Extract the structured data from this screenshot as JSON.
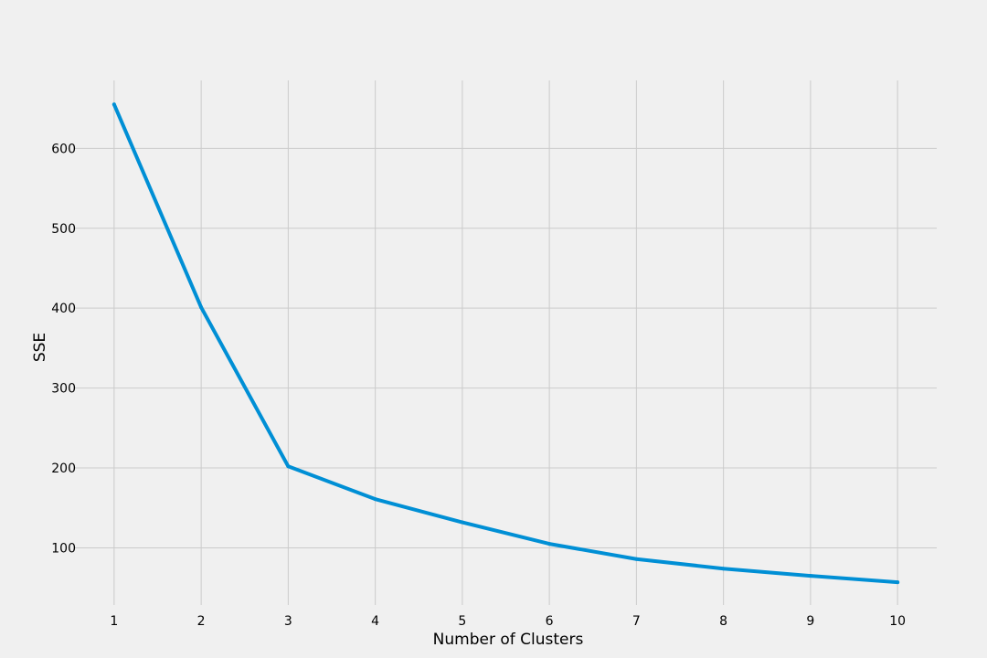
{
  "chart_data": {
    "type": "line",
    "title": "",
    "xlabel": "Number of Clusters",
    "ylabel": "SSE",
    "x": [
      1,
      2,
      3,
      4,
      5,
      6,
      7,
      8,
      9,
      10
    ],
    "series": [
      {
        "values": [
          655,
          401,
          202,
          161,
          132,
          105,
          86,
          74,
          65,
          57
        ]
      }
    ],
    "xticks": [
      1,
      2,
      3,
      4,
      5,
      6,
      7,
      8,
      9,
      10
    ],
    "yticks": [
      100,
      200,
      300,
      400,
      500,
      600
    ],
    "xlim": [
      0.55,
      10.45
    ],
    "ylim": [
      28.5,
      685
    ],
    "grid": true,
    "colors": {
      "line": "#008fd5",
      "background": "#f0f0f0",
      "grid": "#cbcbcb"
    }
  }
}
